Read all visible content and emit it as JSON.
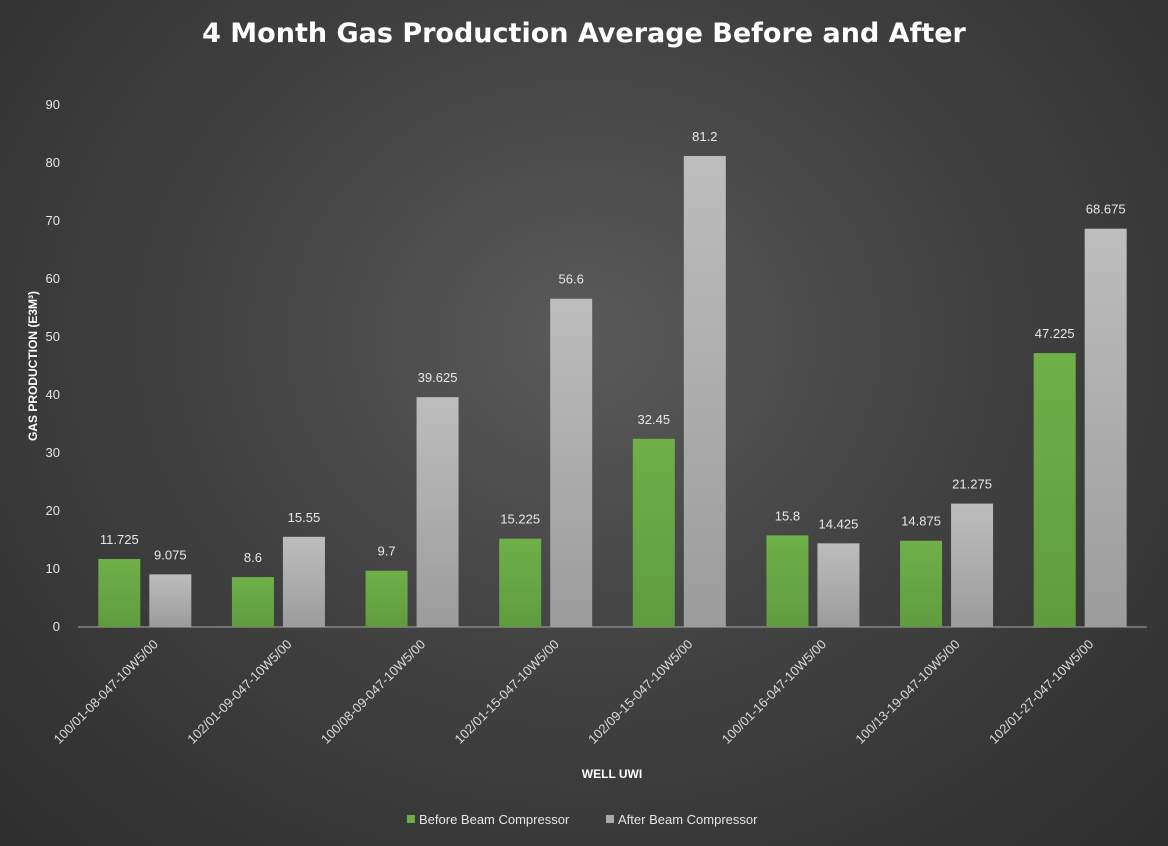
{
  "chart_data": {
    "type": "bar",
    "title": "4 Month Gas Production Average Before and After",
    "xlabel": "WELL UWI",
    "ylabel": "GAS PRODUCTION (E3M³)",
    "ylim": [
      0,
      90
    ],
    "yticks": [
      0,
      10,
      20,
      30,
      40,
      50,
      60,
      70,
      80,
      90
    ],
    "grid": false,
    "legend_position": "bottom",
    "categories": [
      "100/01-08-047-10W5/00",
      "102/01-09-047-10W5/00",
      "100/08-09-047-10W5/00",
      "102/01-15-047-10W5/00",
      "102/09-15-047-10W5/00",
      "100/01-16-047-10W5/00",
      "100/13-19-047-10W5/00",
      "102/01-27-047-10W5/00"
    ],
    "series": [
      {
        "name": "Before Beam Compressor",
        "color": "#6aab46",
        "values": [
          11.725,
          8.6,
          9.7,
          15.225,
          32.45,
          15.8,
          14.875,
          47.225
        ]
      },
      {
        "name": "After Beam Compressor",
        "color": "#b0b0b0",
        "values": [
          9.075,
          15.55,
          39.625,
          56.6,
          81.2,
          14.425,
          21.275,
          68.675
        ]
      }
    ]
  }
}
